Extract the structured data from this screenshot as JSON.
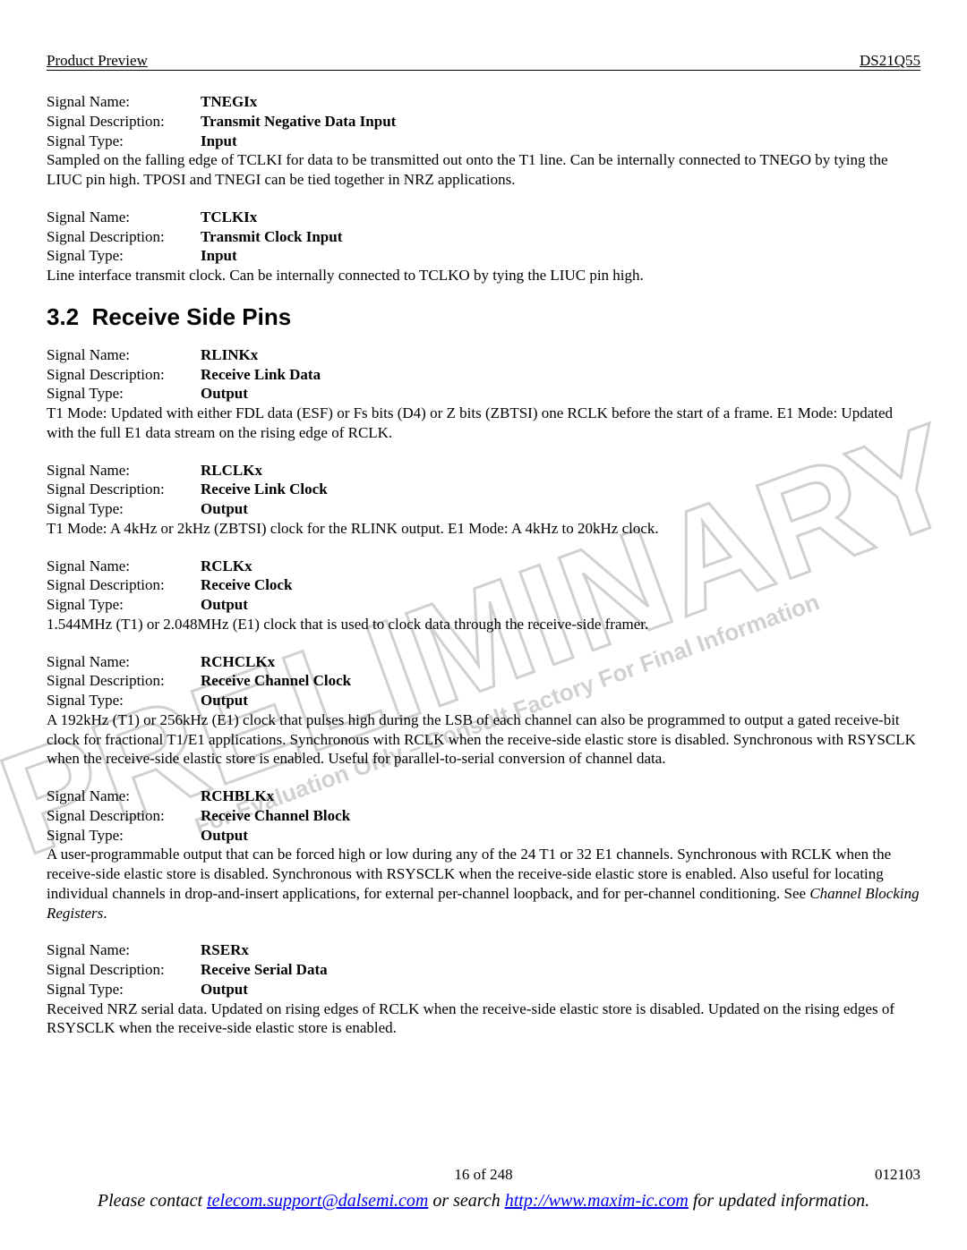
{
  "header": {
    "left": "Product Preview",
    "right": "DS21Q55"
  },
  "watermark": {
    "big": "PRELIMINARY",
    "small": "For Evaluation Only – Consult Factory For Final Information"
  },
  "pins_top": [
    {
      "name": "TNEGIx",
      "description": "Transmit Negative Data Input",
      "type": "Input",
      "text": "Sampled on the falling edge of TCLKI for data to be transmitted out onto the T1 line. Can be internally connected to TNEGO by tying the LIUC pin high. TPOSI and TNEGI can be tied together in NRZ applications."
    },
    {
      "name": "TCLKIx",
      "description": "Transmit Clock Input",
      "type": "Input",
      "text": "Line interface transmit clock. Can be internally connected to TCLKO by tying the LIUC pin high."
    }
  ],
  "section": {
    "number": "3.2",
    "title": "Receive Side Pins"
  },
  "pins_section": [
    {
      "name": "RLINKx",
      "description": "Receive Link Data",
      "type": "Output",
      "text": "T1 Mode: Updated with either FDL data (ESF) or Fs bits (D4) or Z bits (ZBTSI) one RCLK before the start of a frame. E1 Mode: Updated with the full E1 data stream on the rising edge of RCLK."
    },
    {
      "name": "RLCLKx",
      "description": "Receive Link Clock",
      "type": "Output",
      "text": "T1 Mode: A 4kHz or 2kHz (ZBTSI) clock for the RLINK output. E1 Mode: A 4kHz to 20kHz clock."
    },
    {
      "name": "RCLKx",
      "description": "Receive Clock",
      "type": "Output",
      "text": "1.544MHz (T1) or 2.048MHz (E1) clock that is used to clock data through the receive-side framer."
    },
    {
      "name": "RCHCLKx",
      "description": "Receive Channel Clock",
      "type": "Output",
      "text": "A 192kHz (T1) or 256kHz (E1) clock that pulses high during the LSB of each channel can also be programmed to output a gated receive-bit clock for fractional T1/E1 applications. Synchronous with RCLK when the receive-side elastic store is disabled. Synchronous with RSYSCLK when the receive-side elastic store is enabled. Useful for parallel-to-serial conversion of channel data."
    },
    {
      "name": "RCHBLKx",
      "description": "Receive Channel Block",
      "type": "Output",
      "text_html": "A user-programmable output that can be forced high or low during any of the 24 T1 or 32 E1 channels. Synchronous with RCLK when the receive-side elastic store is disabled. Synchronous with RSYSCLK when the receive-side elastic store is enabled. Also useful for locating individual channels in drop-and-insert applications, for external per-channel loopback, and for per-channel conditioning. See <i>Channel Blocking Registers</i>."
    },
    {
      "name": "RSERx",
      "description": "Receive Serial Data",
      "type": "Output",
      "text": "Received NRZ serial data. Updated on rising edges of RCLK when the receive-side elastic store is disabled. Updated on the rising edges of RSYSCLK when the receive-side elastic store is enabled."
    }
  ],
  "labels": {
    "signal_name": "Signal Name:",
    "signal_description": "Signal Description:",
    "signal_type": "Signal Type:"
  },
  "footer": {
    "page": "16 of 248",
    "doc_rev": "012103",
    "contact_prefix": "Please contact ",
    "email": "telecom.support@dalsemi.com",
    "contact_mid": " or search ",
    "url": "http://www.maxim-ic.com",
    "contact_suffix": " for updated information."
  }
}
